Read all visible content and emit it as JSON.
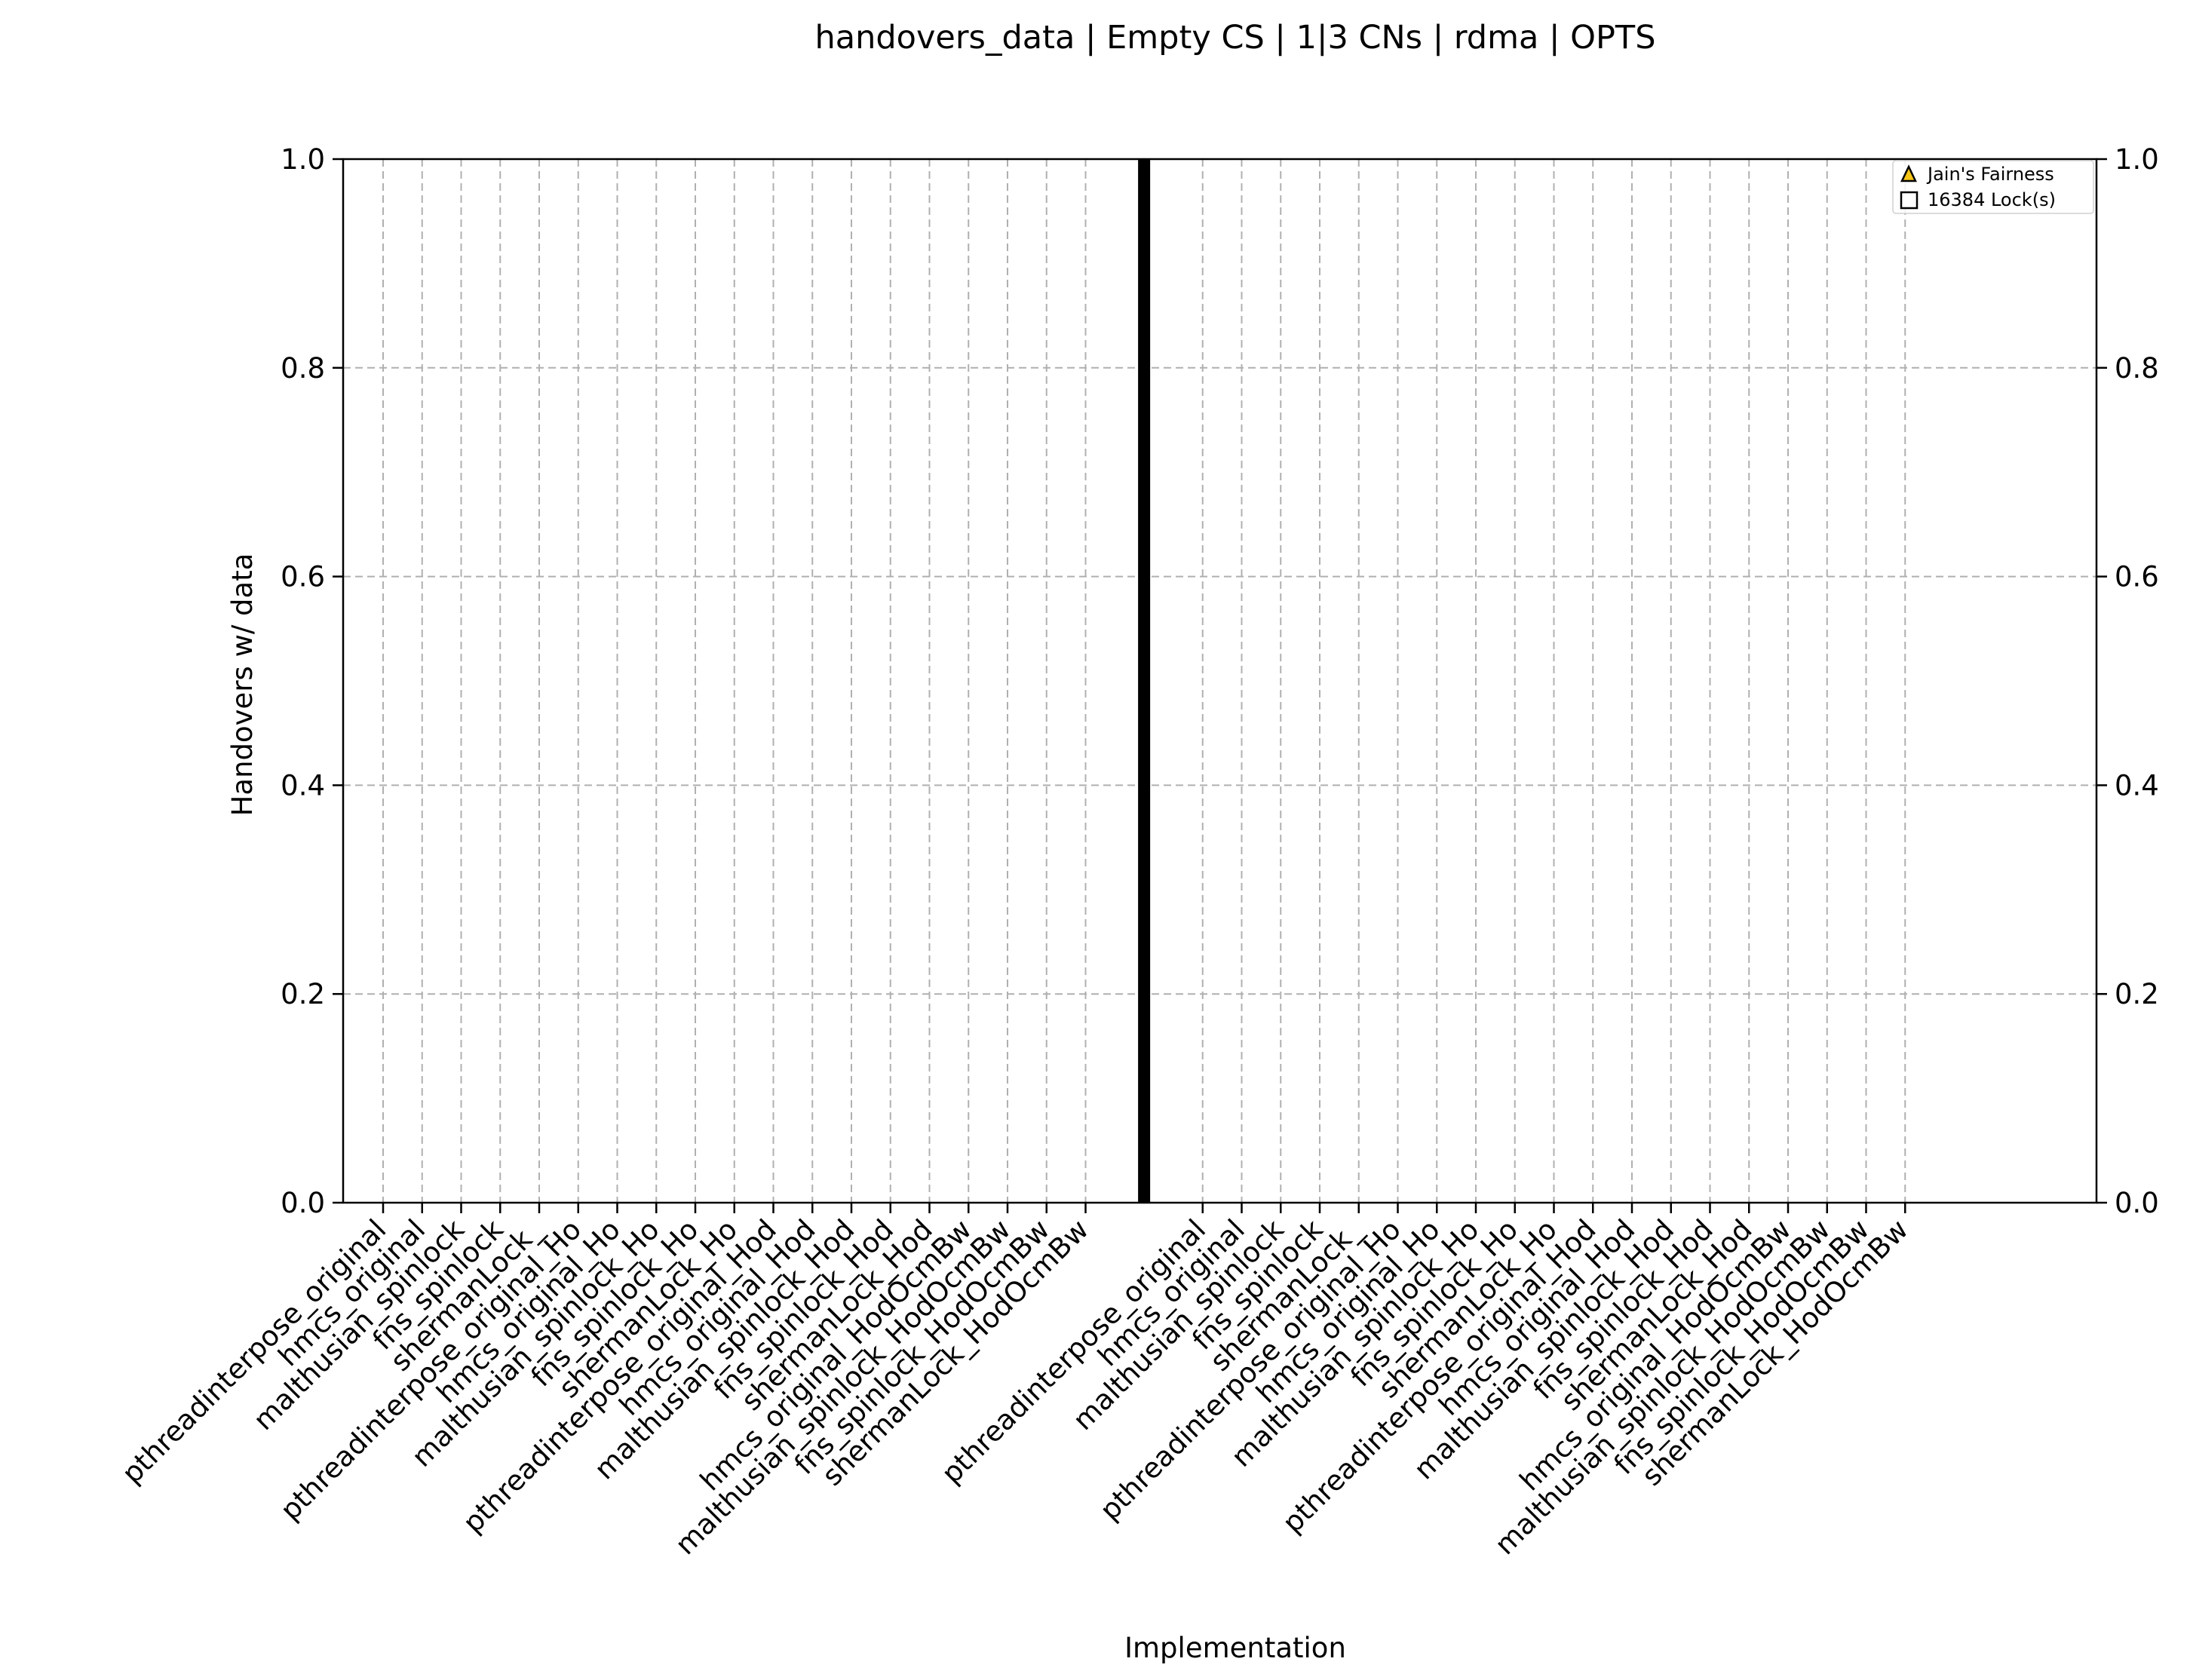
{
  "chart_data": {
    "type": "bar",
    "title": "handovers_data | Empty CS | 1|3 CNs | rdma | OPTS",
    "xlabel": "Implementation",
    "ylabel": "Handovers w/ data",
    "ylim": [
      0,
      1
    ],
    "y_ticks": [
      "0.0",
      "0.2",
      "0.4",
      "0.6",
      "0.8",
      "1.0"
    ],
    "y2_ticks": [
      "0.0",
      "0.2",
      "0.4",
      "0.6",
      "0.8",
      "1.0"
    ],
    "grid": true,
    "legend_position": "top-right",
    "legend": [
      {
        "label": "Jain's Fairness",
        "marker": "triangle",
        "color": "#f5c518"
      },
      {
        "label": "16384 Lock(s)",
        "marker": "square",
        "color": "#ffffff"
      }
    ],
    "separator_color": "#000000",
    "groups": [
      {
        "ticks": [
          "pthreadinterpose_original",
          "hmcs_original",
          "malthusian_spinlock",
          "fns_spinlock",
          "shermanLock_",
          "pthreadinterpose_original_Ho",
          "hmcs_original_Ho",
          "malthusian_spinlock_Ho",
          "fns_spinlock_Ho",
          "shermanLock_Ho",
          "pthreadinterpose_original_Hod",
          "hmcs_original_Hod",
          "malthusian_spinlock_Hod",
          "fns_spinlock_Hod",
          "shermanLock_Hod",
          "hmcs_original_HodOcmBw",
          "malthusian_spinlock_HodOcmBw",
          "fns_spinlock_HodOcmBw",
          "shermanLock_HodOcmBw"
        ]
      },
      {
        "ticks": [
          "pthreadinterpose_original",
          "hmcs_original",
          "malthusian_spinlock",
          "fns_spinlock",
          "shermanLock_",
          "pthreadinterpose_original_Ho",
          "hmcs_original_Ho",
          "malthusian_spinlock_Ho",
          "fns_spinlock_Ho",
          "shermanLock_Ho",
          "pthreadinterpose_original_Hod",
          "hmcs_original_Hod",
          "malthusian_spinlock_Hod",
          "fns_spinlock_Hod",
          "shermanLock_Hod",
          "hmcs_original_HodOcmBw",
          "malthusian_spinlock_HodOcmBw",
          "fns_spinlock_HodOcmBw",
          "shermanLock_HodOcmBw"
        ]
      }
    ]
  }
}
